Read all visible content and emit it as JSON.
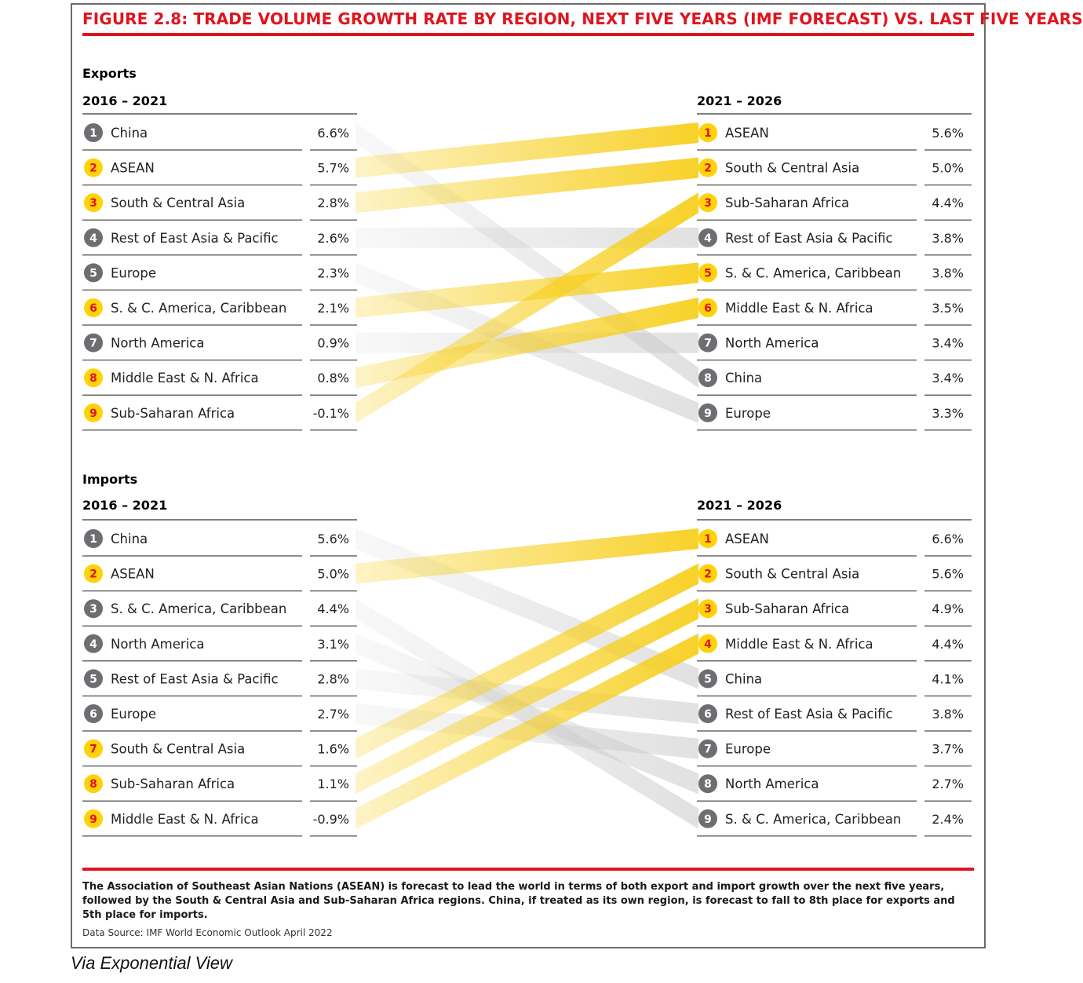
{
  "title": "FIGURE 2.8: TRADE VOLUME GROWTH RATE BY REGION, NEXT FIVE YEARS (IMF FORECAST) VS. LAST FIVE YEARS",
  "footnote": "The Association of Southeast Asian Nations (ASEAN) is forecast to lead the world in terms of both export and import growth over the next five years, followed by the South & Central Asia and Sub-Saharan Africa regions. China, if treated as its own region, is forecast to fall to 8th place for exports and 5th place for imports.",
  "source": "Data Source: IMF World Economic Outlook April 2022",
  "via": "Via Exponential View",
  "colors": {
    "accent": "#e0141e",
    "highlight": "#ffd20a",
    "neutral": "#6d6e71",
    "ribbon_highlight": "#f7cf1e",
    "ribbon_neutral": "#c8c8c8"
  },
  "chart_data": [
    {
      "type": "slope",
      "section": "Exports",
      "left_period": "2016 – 2021",
      "right_period": "2021 – 2026",
      "left": [
        {
          "rank": "1",
          "region": "China",
          "value": "6.6%",
          "highlight": false
        },
        {
          "rank": "2",
          "region": "ASEAN",
          "value": "5.7%",
          "highlight": true
        },
        {
          "rank": "3",
          "region": "South & Central Asia",
          "value": "2.8%",
          "highlight": true
        },
        {
          "rank": "4",
          "region": "Rest of East Asia & Pacific",
          "value": "2.6%",
          "highlight": false
        },
        {
          "rank": "5",
          "region": "Europe",
          "value": "2.3%",
          "highlight": false
        },
        {
          "rank": "6",
          "region": "S. & C. America, Caribbean",
          "value": "2.1%",
          "highlight": true
        },
        {
          "rank": "7",
          "region": "North America",
          "value": "0.9%",
          "highlight": false
        },
        {
          "rank": "8",
          "region": "Middle East & N. Africa",
          "value": "0.8%",
          "highlight": true
        },
        {
          "rank": "9",
          "region": "Sub-Saharan Africa",
          "value": "-0.1%",
          "highlight": true
        }
      ],
      "right": [
        {
          "rank": "1",
          "region": "ASEAN",
          "value": "5.6%",
          "highlight": true
        },
        {
          "rank": "2",
          "region": "South & Central Asia",
          "value": "5.0%",
          "highlight": true
        },
        {
          "rank": "3",
          "region": "Sub-Saharan Africa",
          "value": "4.4%",
          "highlight": true
        },
        {
          "rank": "4",
          "region": "Rest of East Asia & Pacific",
          "value": "3.8%",
          "highlight": false
        },
        {
          "rank": "5",
          "region": "S. & C. America, Caribbean",
          "value": "3.8%",
          "highlight": true
        },
        {
          "rank": "6",
          "region": "Middle East & N. Africa",
          "value": "3.5%",
          "highlight": true
        },
        {
          "rank": "7",
          "region": "North America",
          "value": "3.4%",
          "highlight": false
        },
        {
          "rank": "8",
          "region": "China",
          "value": "3.4%",
          "highlight": false
        },
        {
          "rank": "9",
          "region": "Europe",
          "value": "3.3%",
          "highlight": false
        }
      ]
    },
    {
      "type": "slope",
      "section": "Imports",
      "left_period": "2016 – 2021",
      "right_period": "2021 – 2026",
      "left": [
        {
          "rank": "1",
          "region": "China",
          "value": "5.6%",
          "highlight": false
        },
        {
          "rank": "2",
          "region": "ASEAN",
          "value": "5.0%",
          "highlight": true
        },
        {
          "rank": "3",
          "region": "S. & C. America, Caribbean",
          "value": "4.4%",
          "highlight": false
        },
        {
          "rank": "4",
          "region": "North America",
          "value": "3.1%",
          "highlight": false
        },
        {
          "rank": "5",
          "region": "Rest of East Asia & Pacific",
          "value": "2.8%",
          "highlight": false
        },
        {
          "rank": "6",
          "region": "Europe",
          "value": "2.7%",
          "highlight": false
        },
        {
          "rank": "7",
          "region": "South & Central Asia",
          "value": "1.6%",
          "highlight": true
        },
        {
          "rank": "8",
          "region": "Sub-Saharan Africa",
          "value": "1.1%",
          "highlight": true
        },
        {
          "rank": "9",
          "region": "Middle East & N. Africa",
          "value": "-0.9%",
          "highlight": true
        }
      ],
      "right": [
        {
          "rank": "1",
          "region": "ASEAN",
          "value": "6.6%",
          "highlight": true
        },
        {
          "rank": "2",
          "region": "South & Central Asia",
          "value": "5.6%",
          "highlight": true
        },
        {
          "rank": "3",
          "region": "Sub-Saharan Africa",
          "value": "4.9%",
          "highlight": true
        },
        {
          "rank": "4",
          "region": "Middle East & N. Africa",
          "value": "4.4%",
          "highlight": true
        },
        {
          "rank": "5",
          "region": "China",
          "value": "4.1%",
          "highlight": false
        },
        {
          "rank": "6",
          "region": "Rest of East Asia & Pacific",
          "value": "3.8%",
          "highlight": false
        },
        {
          "rank": "7",
          "region": "Europe",
          "value": "3.7%",
          "highlight": false
        },
        {
          "rank": "8",
          "region": "North America",
          "value": "2.7%",
          "highlight": false
        },
        {
          "rank": "9",
          "region": "S. & C. America, Caribbean",
          "value": "2.4%",
          "highlight": false
        }
      ]
    }
  ]
}
